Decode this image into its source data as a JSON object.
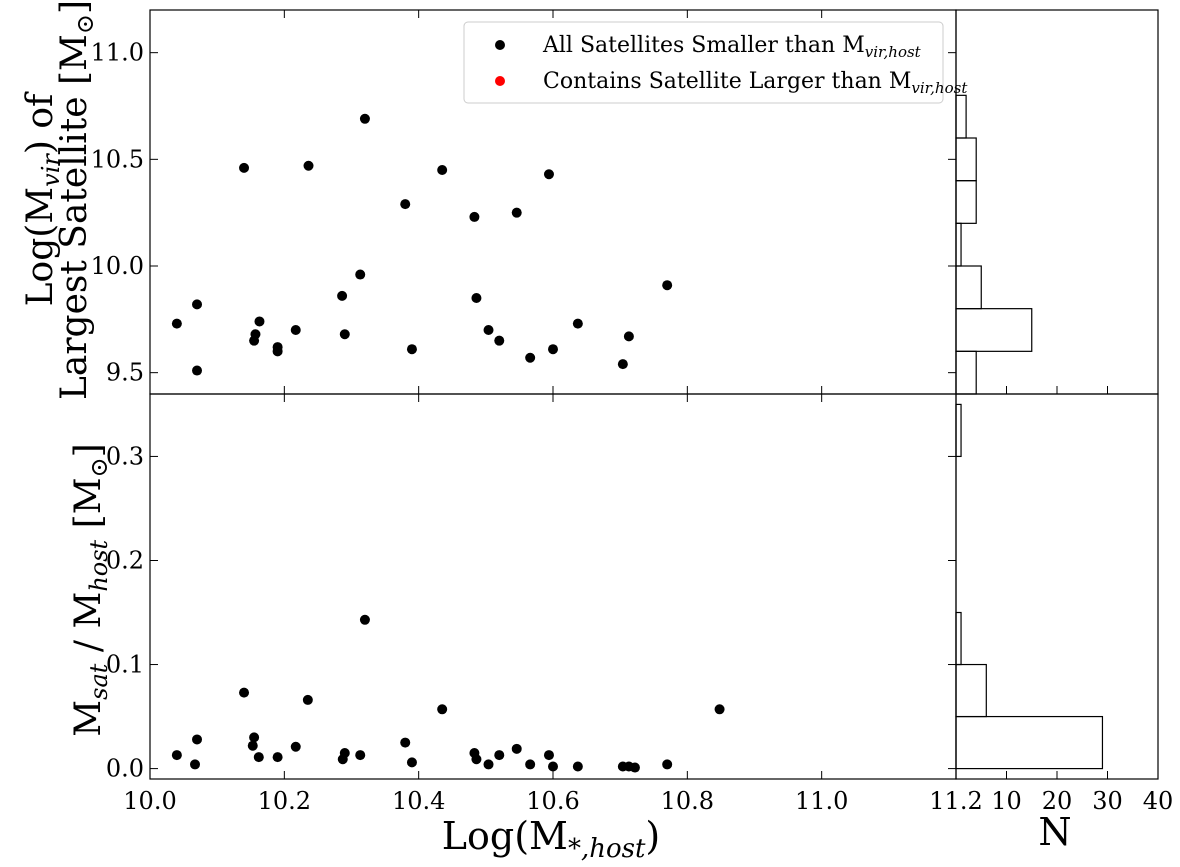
{
  "chart_data": [
    {
      "type": "scatter",
      "panel": "top",
      "xlim": [
        10.0,
        11.2
      ],
      "ylim": [
        9.4,
        11.2
      ],
      "ylabel_line1": "Log(M",
      "ylabel_sub": "vir",
      "ylabel_line1_end": ") of",
      "ylabel_line2": "Largest Satellite [M",
      "ylabel_line2_end": "]",
      "yticks": [
        9.5,
        10.0,
        10.5,
        11.0
      ],
      "ytick_labels": [
        "9.5",
        "10.0",
        "10.5",
        "11.0"
      ],
      "grid": false,
      "legend_position": "top-right",
      "legend": [
        {
          "label": "All Satellites Smaller than M",
          "label_sub": "vir,host",
          "color": "#000000"
        },
        {
          "label": "Contains Satellite Larger than M",
          "label_sub": "vir,host",
          "color": "#ff0000"
        }
      ],
      "points": [
        [
          10.04,
          9.73
        ],
        [
          10.07,
          9.51
        ],
        [
          10.07,
          9.82
        ],
        [
          10.14,
          10.46
        ],
        [
          10.155,
          9.65
        ],
        [
          10.157,
          9.68
        ],
        [
          10.163,
          9.74
        ],
        [
          10.19,
          9.6
        ],
        [
          10.19,
          9.62
        ],
        [
          10.217,
          9.7
        ],
        [
          10.236,
          10.47
        ],
        [
          10.286,
          9.86
        ],
        [
          10.29,
          9.68
        ],
        [
          10.313,
          9.96
        ],
        [
          10.32,
          10.69
        ],
        [
          10.38,
          10.29
        ],
        [
          10.39,
          9.61
        ],
        [
          10.435,
          10.45
        ],
        [
          10.483,
          10.23
        ],
        [
          10.486,
          9.85
        ],
        [
          10.504,
          9.7
        ],
        [
          10.52,
          9.65
        ],
        [
          10.546,
          10.25
        ],
        [
          10.566,
          9.57
        ],
        [
          10.594,
          10.43
        ],
        [
          10.6,
          9.61
        ],
        [
          10.637,
          9.73
        ],
        [
          10.704,
          9.54
        ],
        [
          10.713,
          9.67
        ],
        [
          10.77,
          9.91
        ]
      ]
    },
    {
      "type": "bar",
      "panel": "top-histogram",
      "orientation": "horizontal",
      "bins": [
        {
          "range": [
            9.4,
            9.6
          ],
          "count": 4
        },
        {
          "range": [
            9.6,
            9.8
          ],
          "count": 15
        },
        {
          "range": [
            9.8,
            10.0
          ],
          "count": 5
        },
        {
          "range": [
            10.0,
            10.2
          ],
          "count": 1
        },
        {
          "range": [
            10.2,
            10.4
          ],
          "count": 4
        },
        {
          "range": [
            10.4,
            10.6
          ],
          "count": 4
        },
        {
          "range": [
            10.6,
            10.8
          ],
          "count": 2
        }
      ]
    },
    {
      "type": "scatter",
      "panel": "bottom",
      "xlim": [
        10.0,
        11.2
      ],
      "ylim": [
        -0.01,
        0.36
      ],
      "xlabel": "Log(M",
      "xlabel_sub": "*,host",
      "xlabel_end": ")",
      "ylabel": "M",
      "ylabel_sub1": "sat",
      "ylabel_mid": " / M",
      "ylabel_sub2": "host",
      "ylabel_end": " [M",
      "ylabel_close": "]",
      "xticks": [
        10.0,
        10.2,
        10.4,
        10.6,
        10.8,
        11.0,
        11.2
      ],
      "xtick_labels": [
        "10.0",
        "10.2",
        "10.4",
        "10.6",
        "10.8",
        "11.0",
        "11.2"
      ],
      "yticks": [
        0.0,
        0.1,
        0.2,
        0.3
      ],
      "ytick_labels": [
        "0.0",
        "0.1",
        "0.2",
        "0.3"
      ],
      "grid": false,
      "points": [
        [
          10.04,
          0.013
        ],
        [
          10.067,
          0.004
        ],
        [
          10.07,
          0.028
        ],
        [
          10.14,
          0.073
        ],
        [
          10.153,
          0.022
        ],
        [
          10.155,
          0.03
        ],
        [
          10.162,
          0.011
        ],
        [
          10.19,
          0.011
        ],
        [
          10.217,
          0.021
        ],
        [
          10.235,
          0.066
        ],
        [
          10.287,
          0.009
        ],
        [
          10.29,
          0.015
        ],
        [
          10.313,
          0.013
        ],
        [
          10.32,
          0.143
        ],
        [
          10.38,
          0.025
        ],
        [
          10.39,
          0.006
        ],
        [
          10.435,
          0.057
        ],
        [
          10.483,
          0.015
        ],
        [
          10.486,
          0.009
        ],
        [
          10.504,
          0.004
        ],
        [
          10.52,
          0.013
        ],
        [
          10.546,
          0.019
        ],
        [
          10.566,
          0.004
        ],
        [
          10.594,
          0.013
        ],
        [
          10.6,
          0.002
        ],
        [
          10.637,
          0.002
        ],
        [
          10.704,
          0.002
        ],
        [
          10.713,
          0.002
        ],
        [
          10.722,
          0.001
        ],
        [
          10.77,
          0.004
        ],
        [
          10.848,
          0.057
        ]
      ]
    },
    {
      "type": "bar",
      "panel": "bottom-histogram",
      "orientation": "horizontal",
      "xlabel": "N",
      "xlim": [
        0,
        40
      ],
      "xticks": [
        10,
        20,
        30,
        40
      ],
      "xtick_labels": [
        "10",
        "20",
        "30",
        "40"
      ],
      "bins": [
        {
          "range": [
            0.0,
            0.05
          ],
          "count": 29
        },
        {
          "range": [
            0.05,
            0.1
          ],
          "count": 6
        },
        {
          "range": [
            0.1,
            0.15
          ],
          "count": 1
        },
        {
          "range": [
            0.15,
            0.2
          ],
          "count": 0
        },
        {
          "range": [
            0.2,
            0.25
          ],
          "count": 0
        },
        {
          "range": [
            0.25,
            0.3
          ],
          "count": 0
        },
        {
          "range": [
            0.3,
            0.35
          ],
          "count": 1
        }
      ]
    }
  ]
}
